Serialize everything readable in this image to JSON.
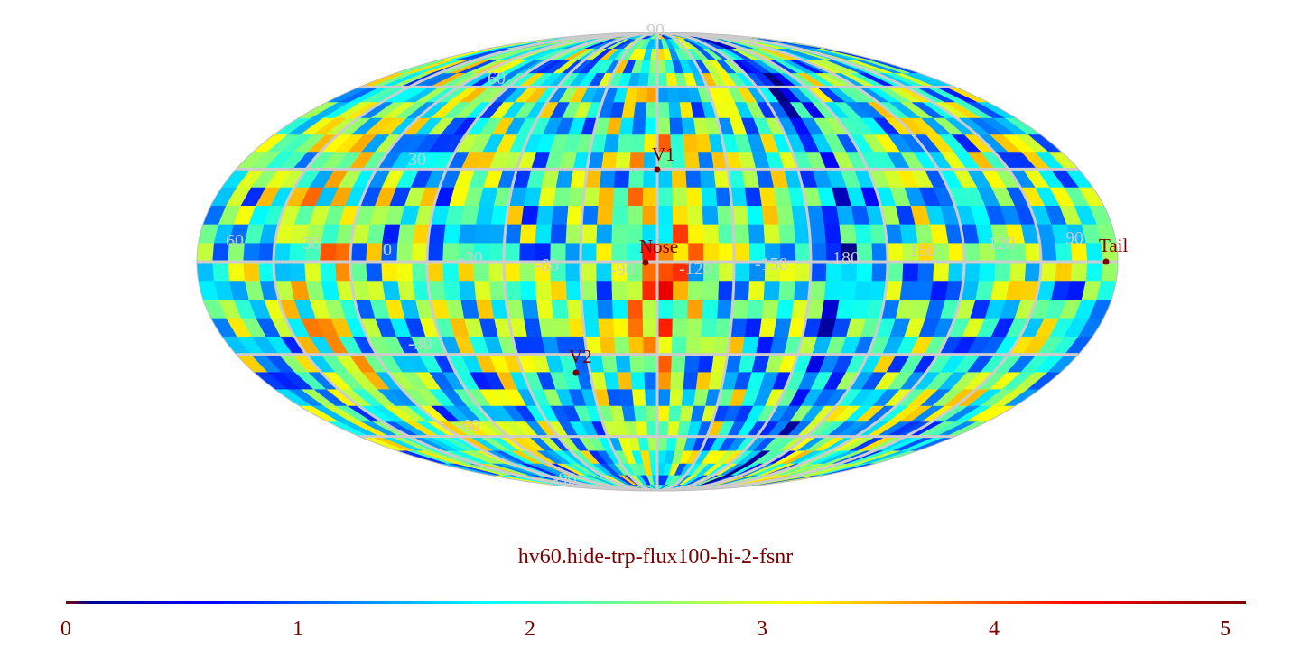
{
  "title": "hv60.hide-trp-flux100-hi-2-fsnr",
  "colormap": "jet",
  "colorbar": {
    "min": 0,
    "max": 5,
    "ticks": [
      "0",
      "1",
      "2",
      "3",
      "4",
      "5"
    ]
  },
  "grid_color": "#cccccc",
  "marker_color": "#7a0000",
  "latitude_labels": [
    "90",
    "60",
    "30",
    "-30",
    "-60",
    "-90"
  ],
  "longitude_labels": [
    "60",
    "30",
    "0",
    "-30",
    "-60",
    "-90",
    "-120",
    "-150",
    "180",
    "150",
    "120",
    "90"
  ],
  "markers": [
    {
      "name": "V1",
      "lon": -90,
      "lat": 34
    },
    {
      "name": "Nose",
      "lon": -105,
      "lat": 0
    },
    {
      "name": "V2",
      "lon": -80,
      "lat": -34
    },
    {
      "name": "Tail",
      "lon": 75,
      "lat": 0
    }
  ]
}
